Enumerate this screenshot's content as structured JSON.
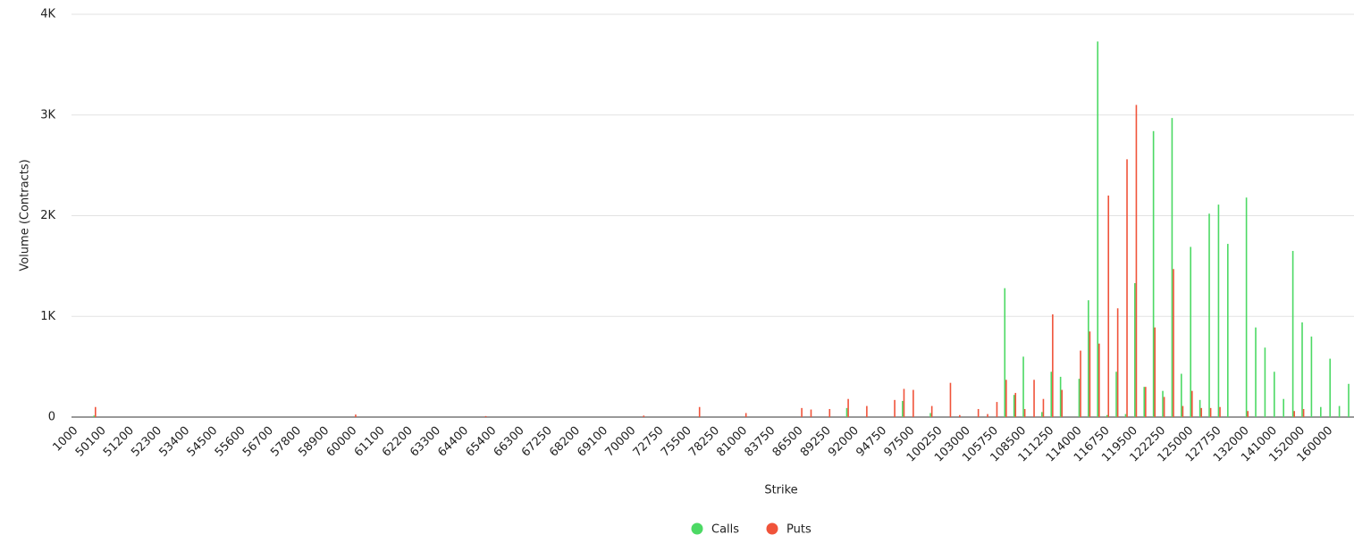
{
  "chart_data": {
    "type": "bar",
    "y_label": "Volume (Contracts)",
    "x_label": "Strike",
    "ylim": [
      0,
      4000
    ],
    "yticks": [
      0,
      {
        "value": 1000,
        "label": "1K"
      },
      {
        "value": 2000,
        "label": "2K"
      },
      {
        "value": 3000,
        "label": "3K"
      },
      {
        "value": 4000,
        "label": "4K"
      }
    ],
    "grid": true,
    "legend": "bottom",
    "categories": [
      "1000",
      null,
      null,
      "50100",
      null,
      null,
      "51200",
      null,
      null,
      "52300",
      null,
      null,
      "53400",
      null,
      null,
      "54500",
      null,
      null,
      "55600",
      null,
      null,
      "56700",
      null,
      null,
      "57800",
      null,
      null,
      "58900",
      null,
      null,
      "60000",
      null,
      null,
      "61100",
      null,
      null,
      "62200",
      null,
      null,
      "63300",
      null,
      null,
      "64400",
      null,
      null,
      "65400",
      null,
      null,
      "66300",
      null,
      null,
      "67250",
      null,
      null,
      "68200",
      null,
      null,
      "69100",
      null,
      null,
      "70000",
      null,
      null,
      "72750",
      null,
      null,
      "75500",
      null,
      null,
      "78250",
      null,
      null,
      "81000",
      null,
      null,
      "83750",
      null,
      null,
      "86500",
      null,
      null,
      "89250",
      null,
      null,
      "92000",
      null,
      null,
      "94750",
      null,
      null,
      "97500",
      null,
      null,
      "100250",
      null,
      null,
      "103000",
      null,
      null,
      "105750",
      null,
      null,
      "108500",
      null,
      null,
      "111250",
      null,
      null,
      "114000",
      null,
      null,
      "116750",
      null,
      null,
      "119500",
      null,
      null,
      "122250",
      null,
      null,
      "125000",
      null,
      null,
      "127750",
      null,
      null,
      "132000",
      null,
      null,
      "141000",
      null,
      null,
      "152000",
      null,
      null,
      "160000",
      null,
      null
    ],
    "series": [
      {
        "name": "Calls",
        "color": "#4cd964",
        "values": [
          0,
          0,
          15,
          0,
          0,
          0,
          0,
          0,
          0,
          0,
          0,
          0,
          0,
          0,
          0,
          0,
          0,
          0,
          0,
          0,
          0,
          0,
          0,
          0,
          0,
          0,
          0,
          0,
          0,
          0,
          0,
          0,
          0,
          0,
          0,
          0,
          0,
          0,
          0,
          0,
          0,
          0,
          0,
          0,
          0,
          0,
          0,
          0,
          0,
          0,
          0,
          0,
          0,
          0,
          0,
          0,
          0,
          0,
          0,
          0,
          0,
          0,
          0,
          0,
          0,
          0,
          0,
          0,
          0,
          0,
          0,
          0,
          0,
          0,
          0,
          0,
          0,
          0,
          0,
          0,
          0,
          0,
          0,
          90,
          0,
          0,
          0,
          0,
          0,
          160,
          0,
          0,
          40,
          0,
          0,
          0,
          0,
          0,
          0,
          0,
          1280,
          220,
          600,
          0,
          50,
          450,
          400,
          0,
          380,
          1160,
          3730,
          20,
          450,
          30,
          1330,
          300,
          2840,
          260,
          2970,
          430,
          1690,
          170,
          2020,
          2110,
          1720,
          0,
          2180,
          890,
          690,
          450,
          180,
          1650,
          940,
          800,
          100,
          580,
          110,
          330
        ]
      },
      {
        "name": "Puts",
        "color": "#f0533a",
        "values": [
          0,
          0,
          100,
          0,
          0,
          0,
          0,
          0,
          0,
          0,
          0,
          0,
          0,
          0,
          0,
          0,
          0,
          0,
          0,
          0,
          0,
          0,
          0,
          0,
          0,
          0,
          0,
          0,
          0,
          0,
          25,
          0,
          0,
          0,
          0,
          0,
          0,
          0,
          0,
          0,
          0,
          0,
          0,
          0,
          10,
          0,
          0,
          0,
          0,
          0,
          0,
          0,
          0,
          0,
          0,
          0,
          0,
          0,
          0,
          0,
          0,
          15,
          0,
          0,
          0,
          0,
          0,
          100,
          0,
          0,
          0,
          0,
          40,
          0,
          0,
          0,
          0,
          0,
          90,
          75,
          0,
          80,
          0,
          180,
          0,
          110,
          0,
          0,
          170,
          280,
          270,
          0,
          110,
          0,
          340,
          20,
          0,
          80,
          30,
          150,
          370,
          240,
          80,
          370,
          180,
          1020,
          270,
          0,
          660,
          850,
          730,
          2200,
          1080,
          2560,
          3100,
          300,
          890,
          200,
          1470,
          110,
          260,
          90,
          90,
          100,
          0,
          0,
          60,
          0,
          0,
          0,
          0,
          60,
          80,
          0,
          0,
          0,
          0,
          0
        ]
      }
    ]
  }
}
